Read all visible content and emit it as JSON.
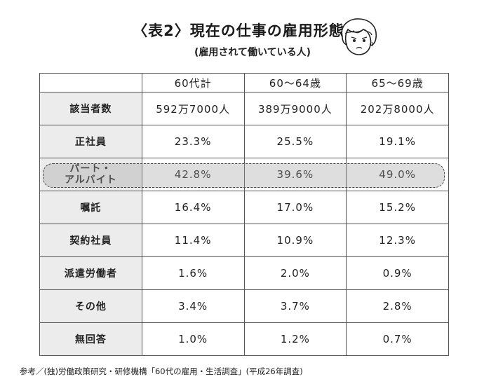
{
  "title": "〈表2〉現在の仕事の雇用形態",
  "subtitle": "(雇用されて働いている人)",
  "columns": [
    "",
    "60代計",
    "60〜64歳",
    "65〜69歳"
  ],
  "rows": [
    {
      "label": "該当者数",
      "values": [
        "592万7000人",
        "389万9000人",
        "202万8000人"
      ]
    },
    {
      "label": "正社員",
      "values": [
        "23.3%",
        "25.5%",
        "19.1%"
      ]
    },
    {
      "label_line1": "パート・",
      "label_line2": "アルバイト",
      "values": [
        "42.8%",
        "39.6%",
        "49.0%"
      ],
      "highlight": true
    },
    {
      "label": "嘱託",
      "values": [
        "16.4%",
        "17.0%",
        "15.2%"
      ]
    },
    {
      "label": "契約社員",
      "values": [
        "11.4%",
        "10.9%",
        "12.3%"
      ]
    },
    {
      "label": "派遣労働者",
      "values": [
        "1.6%",
        "2.0%",
        "0.9%"
      ]
    },
    {
      "label": "その他",
      "values": [
        "3.4%",
        "3.7%",
        "2.8%"
      ]
    },
    {
      "label": "無回答",
      "values": [
        "1.0%",
        "1.2%",
        "0.7%"
      ]
    }
  ],
  "footnote": "参考／(独)労働政策研究・研修機構「60代の雇用・生活調査」(平成26年調査)",
  "colors": {
    "label_bg": "#ececec",
    "highlight_bg": "#d4d4d4",
    "border": "#555555"
  }
}
